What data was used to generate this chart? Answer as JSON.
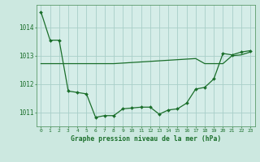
{
  "title": "Graphe pression niveau de la mer (hPa)",
  "background_color": "#cce8e0",
  "plot_bg_color": "#d5ede8",
  "grid_color": "#a8cfc8",
  "line_color": "#1a6e2a",
  "marker_color": "#1a6e2a",
  "xlim": [
    -0.5,
    23.5
  ],
  "ylim": [
    1010.5,
    1014.8
  ],
  "yticks": [
    1011,
    1012,
    1013,
    1014
  ],
  "xtick_labels": [
    "0",
    "1",
    "2",
    "3",
    "4",
    "5",
    "6",
    "7",
    "8",
    "9",
    "10",
    "11",
    "12",
    "13",
    "14",
    "15",
    "16",
    "17",
    "18",
    "19",
    "20",
    "21",
    "22",
    "23"
  ],
  "series1_x": [
    0,
    1,
    2,
    3,
    4,
    5,
    6,
    7,
    8,
    9,
    10,
    11,
    12,
    13,
    14,
    15,
    16,
    17,
    18,
    19,
    20,
    21,
    22,
    23
  ],
  "series1_y": [
    1014.55,
    1013.55,
    1013.55,
    1011.75,
    1011.7,
    1011.65,
    1010.82,
    1010.88,
    1010.88,
    1011.12,
    1011.15,
    1011.18,
    1011.18,
    1010.93,
    1011.08,
    1011.12,
    1011.32,
    1011.82,
    1011.88,
    1012.18,
    1013.08,
    1013.03,
    1013.13,
    1013.18
  ],
  "series2_x": [
    0,
    1,
    2,
    3,
    4,
    5,
    6,
    7,
    8,
    9,
    10,
    11,
    12,
    13,
    14,
    15,
    16,
    17,
    18,
    19,
    20,
    21,
    22,
    23
  ],
  "series2_y": [
    1012.72,
    1012.72,
    1012.72,
    1012.72,
    1012.72,
    1012.72,
    1012.72,
    1012.72,
    1012.72,
    1012.74,
    1012.76,
    1012.78,
    1012.8,
    1012.82,
    1012.84,
    1012.86,
    1012.88,
    1012.9,
    1012.72,
    1012.72,
    1012.72,
    1013.0,
    1013.03,
    1013.13
  ]
}
